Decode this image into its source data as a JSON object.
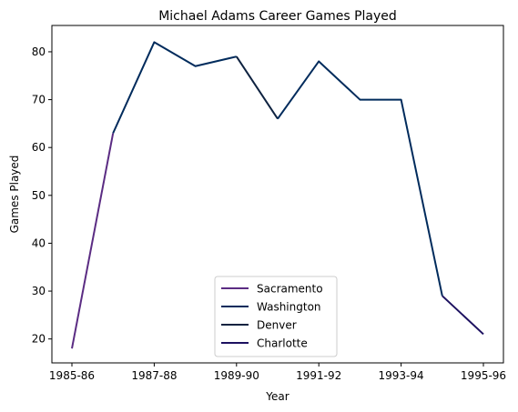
{
  "chart_data": {
    "type": "line",
    "title": "Michael Adams  Career Games Played",
    "xlabel": "Year",
    "ylabel": "Games Played",
    "categories": [
      "1985-86",
      "1986-87",
      "1987-88",
      "1988-89",
      "1989-90",
      "1990-91",
      "1991-92",
      "1992-93",
      "1993-94",
      "1994-95",
      "1995-96"
    ],
    "x_tick_labels": [
      "1985-86",
      "1987-88",
      "1989-90",
      "1991-92",
      "1993-94",
      "1995-96"
    ],
    "y_ticks": [
      20,
      30,
      40,
      50,
      60,
      70,
      80
    ],
    "ylim": [
      15,
      85.5
    ],
    "grid": false,
    "legend_position": "lower center",
    "series": [
      {
        "name": "Sacramento",
        "color": "#5b2c83",
        "x": [
          "1985-86",
          "1986-87"
        ],
        "values": [
          18,
          63
        ]
      },
      {
        "name": "Washington",
        "color": "#002b5c",
        "x": [
          "1986-87",
          "1987-88",
          "1988-89",
          "1989-90"
        ],
        "values": [
          63,
          82,
          77,
          79
        ]
      },
      {
        "name": "Denver",
        "color": "#0e2240",
        "x": [
          "1989-90",
          "1990-91"
        ],
        "values": [
          79,
          66
        ]
      },
      {
        "name": "Washington",
        "color": "#002b5c",
        "x": [
          "1990-91",
          "1991-92",
          "1992-93",
          "1993-94",
          "1994-95"
        ],
        "values": [
          66,
          78,
          70,
          70,
          29
        ]
      },
      {
        "name": "Charlotte",
        "color": "#1d1160",
        "x": [
          "1994-95",
          "1995-96"
        ],
        "values": [
          29,
          21
        ]
      }
    ],
    "legend": [
      {
        "label": "Sacramento",
        "color": "#5b2c83"
      },
      {
        "label": "Washington",
        "color": "#002b5c"
      },
      {
        "label": "Denver",
        "color": "#0e2240"
      },
      {
        "label": "Charlotte",
        "color": "#1d1160"
      }
    ]
  }
}
